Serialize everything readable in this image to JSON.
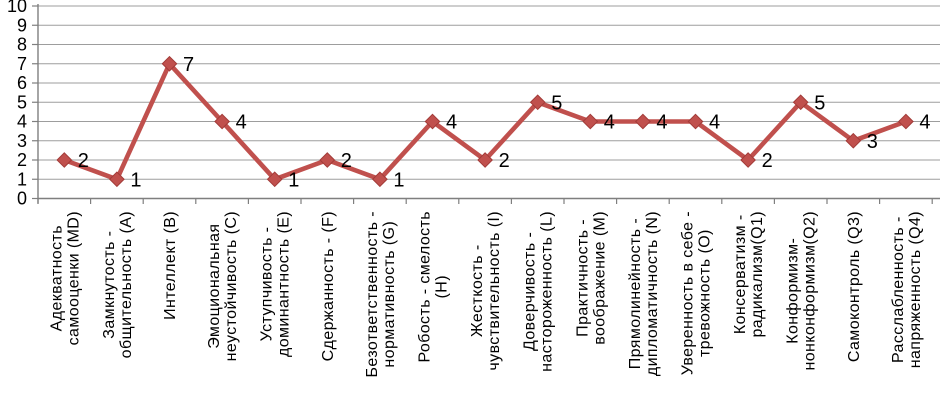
{
  "chart_data": {
    "type": "line",
    "title": "",
    "legend": "none",
    "grid": "horizontal",
    "marker": "diamond",
    "data_label_position": "right",
    "ylim": [
      0,
      10
    ],
    "yticks": [
      0,
      1,
      2,
      3,
      4,
      5,
      6,
      7,
      8,
      9,
      10
    ],
    "categories": [
      [
        "Адекватность",
        "самооценки (MD)"
      ],
      [
        "Замкнутость -",
        "общительность (А)"
      ],
      [
        "Интеллект (В)"
      ],
      [
        "Эмоциональная",
        "неустойчивость (С)"
      ],
      [
        "Уступчивость -",
        "доминантность (Е)"
      ],
      [
        "Сдержанность - (F)"
      ],
      [
        "Безответственность -",
        "нормативность (G)"
      ],
      [
        "Робость - смелость",
        "(Н)"
      ],
      [
        "Жесткость -",
        "чувствительность (I)"
      ],
      [
        "Доверчивость -",
        "настороженность (L)"
      ],
      [
        "Практичность -",
        "воображение (М)"
      ],
      [
        "Прямолинейность -",
        "дипломатичность (N)"
      ],
      [
        "Уверенность в себе -",
        "тревожность (О)"
      ],
      [
        "Консерватизм -",
        "радикализм(Q1)"
      ],
      [
        "Конформизм-",
        "нонконформизм(Q2)"
      ],
      [
        "Самоконтроль (Q3)"
      ],
      [
        "Расслабленность -",
        "напряженность (Q4)"
      ]
    ],
    "series": [
      {
        "name": "",
        "values": [
          2,
          1,
          7,
          4,
          1,
          2,
          1,
          4,
          2,
          5,
          4,
          4,
          4,
          2,
          5,
          3,
          4
        ]
      }
    ],
    "colors": {
      "series": "#C0504D",
      "marker_border": "#A23B38",
      "gridline": "#9D9D9D",
      "axis": "#7F7F7F",
      "text": "#000000"
    }
  }
}
